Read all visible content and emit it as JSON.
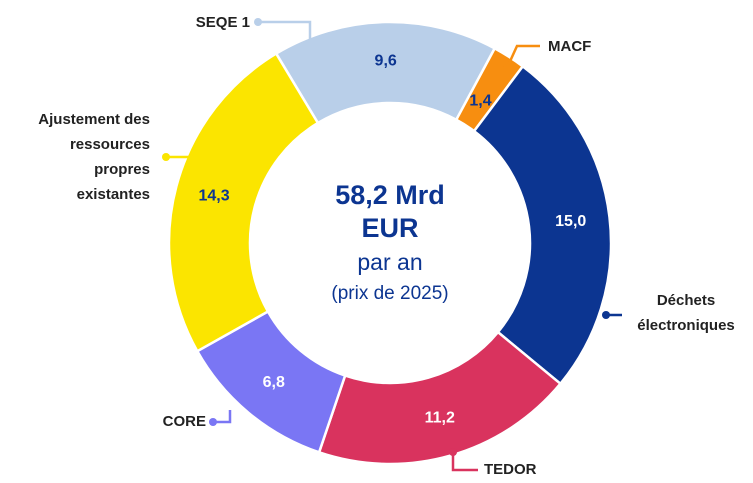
{
  "chart_data": {
    "type": "donut",
    "categories": [
      "SEQE 1",
      "MACF",
      "Déchets électroniques",
      "TEDOR",
      "CORE",
      "Ajustement des ressources propres existantes"
    ],
    "values": [
      9.6,
      1.4,
      15.0,
      11.2,
      6.8,
      14.3
    ],
    "value_labels": [
      "9,6",
      "1,4",
      "15,0",
      "11,2",
      "6,8",
      "14,3"
    ],
    "colors": [
      "#b9cfe9",
      "#f78e10",
      "#0c3591",
      "#d9335e",
      "#7a76f4",
      "#fbe500"
    ],
    "center_text": [
      "58,2 Mrd",
      "EUR",
      "par an",
      "(prix de 2025)"
    ]
  }
}
